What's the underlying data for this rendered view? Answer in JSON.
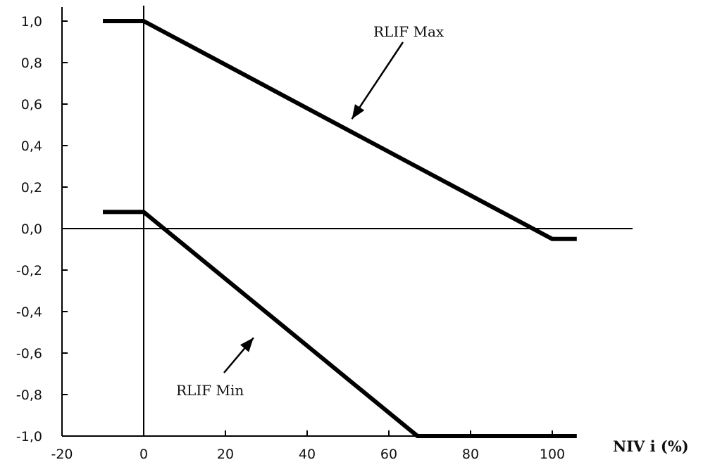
{
  "chart_data": {
    "type": "line",
    "title": "",
    "xlabel": "NIV i (%)",
    "ylabel": "",
    "xlim": [
      -20,
      120
    ],
    "ylim": [
      -1.0,
      1.0
    ],
    "x_ticks": [
      "-20",
      "0",
      "20",
      "40",
      "60",
      "80",
      "100"
    ],
    "x_tick_values": [
      -20,
      0,
      20,
      40,
      60,
      80,
      100
    ],
    "y_ticks": [
      "1,0",
      "0,8",
      "0,6",
      "0,4",
      "0,2",
      "0,0",
      "-0,2",
      "-0,4",
      "-0,6",
      "-0,8",
      "-1,0"
    ],
    "y_tick_values": [
      1.0,
      0.8,
      0.6,
      0.4,
      0.2,
      0.0,
      -0.2,
      -0.4,
      -0.6,
      -0.8,
      -1.0
    ],
    "grid": false,
    "series": [
      {
        "name": "RLIF Max",
        "points": [
          [
            -10,
            1.0
          ],
          [
            0,
            1.0
          ],
          [
            100,
            -0.05
          ],
          [
            106,
            -0.05
          ]
        ]
      },
      {
        "name": "RLIF Min",
        "points": [
          [
            -10,
            0.08
          ],
          [
            0,
            0.08
          ],
          [
            67,
            -1.0
          ],
          [
            106,
            -1.0
          ]
        ]
      }
    ],
    "annotations": [
      {
        "text": "RLIF Max",
        "series": "RLIF Max",
        "arrow_to": [
          50,
          0.5
        ]
      },
      {
        "text": "RLIF Min",
        "series": "RLIF Min",
        "arrow_to": [
          28,
          -0.5
        ]
      }
    ],
    "colors": {
      "line": "#000000",
      "axis": "#000000",
      "text": "#111111"
    }
  }
}
